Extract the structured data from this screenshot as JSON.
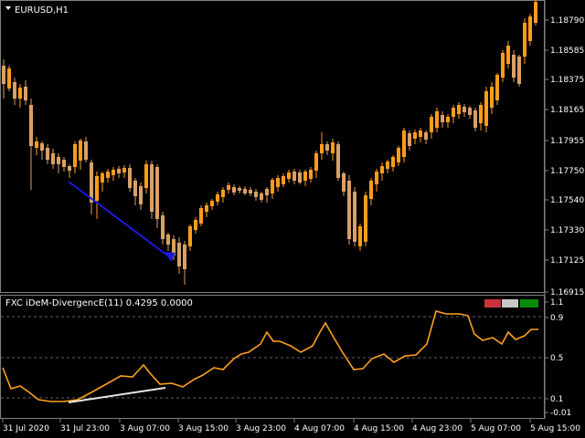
{
  "main_chart": {
    "symbol_label": "EURUSD,H1",
    "price_ticks": [
      "1.18790",
      "1.18585",
      "1.18375",
      "1.18165",
      "1.17955",
      "1.17750",
      "1.17540",
      "1.17330",
      "1.17125",
      "1.16915"
    ]
  },
  "indicator": {
    "label": "FXC iDeM-DivergencE(11) 0.4295 0.0000",
    "ticks": [
      "1.1",
      "0.9",
      "0.5",
      "0.1",
      "-0.01"
    ],
    "legend_colors": [
      "#c8323c",
      "#c8c8c8",
      "#0a8a0a"
    ]
  },
  "time_axis": [
    "31 Jul 2020",
    "31 Jul 23:00",
    "3 Aug 07:00",
    "3 Aug 15:00",
    "3 Aug 23:00",
    "4 Aug 07:00",
    "4 Aug 15:00",
    "4 Aug 23:00",
    "5 Aug 07:00",
    "5 Aug 15:00"
  ],
  "colors": {
    "bull": "#ff9c1a",
    "bear": "#d9a066",
    "indicator_line": "#ffa020",
    "divergence_price": "#1a1adc",
    "divergence_indicator": "#e6e6e6"
  }
}
